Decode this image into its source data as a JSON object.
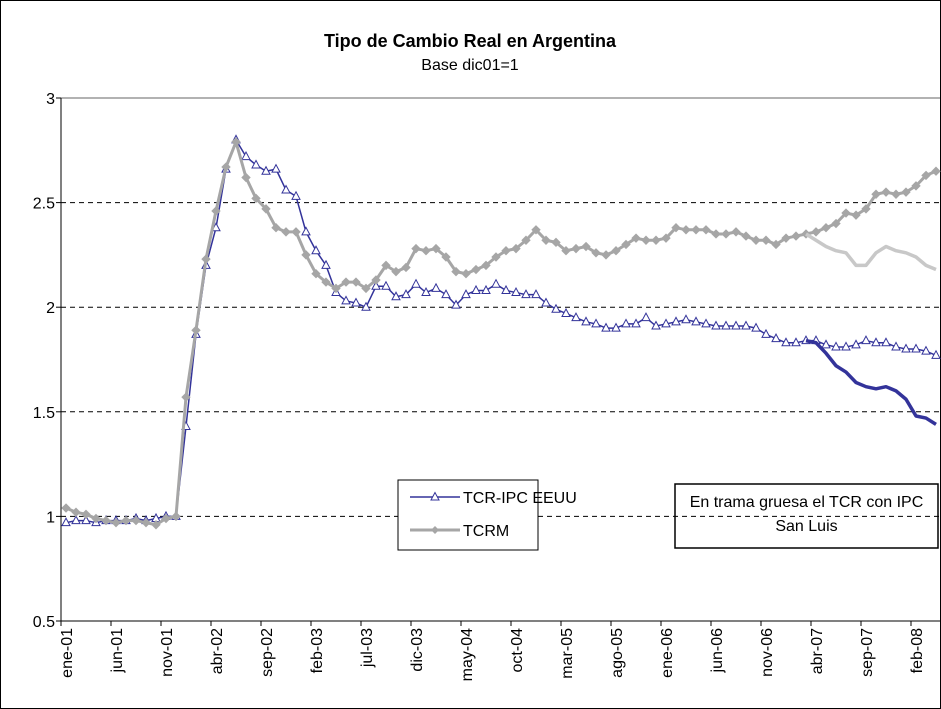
{
  "chart_data": {
    "type": "line",
    "title": "Tipo de Cambio Real en Argentina",
    "subtitle": "Base dic01=1",
    "annotation": "En trama gruesa el TCR con IPC San Luis",
    "categories": [
      "ene-01",
      null,
      null,
      null,
      null,
      "jun-01",
      null,
      null,
      null,
      null,
      "nov-01",
      null,
      null,
      null,
      null,
      "abr-02",
      null,
      null,
      null,
      null,
      "sep-02",
      null,
      null,
      null,
      null,
      "feb-03",
      null,
      null,
      null,
      null,
      "jul-03",
      null,
      null,
      null,
      null,
      "dic-03",
      null,
      null,
      null,
      null,
      "may-04",
      null,
      null,
      null,
      null,
      "oct-04",
      null,
      null,
      null,
      null,
      "mar-05",
      null,
      null,
      null,
      null,
      "ago-05",
      null,
      null,
      null,
      null,
      "ene-06",
      null,
      null,
      null,
      null,
      "jun-06",
      null,
      null,
      null,
      null,
      "nov-06",
      null,
      null,
      null,
      null,
      "abr-07",
      null,
      null,
      null,
      null,
      "sep-07",
      null,
      null,
      null,
      null,
      "feb-08",
      null,
      null
    ],
    "series": [
      {
        "name": "TCR-IPC EEUU",
        "color": "#33339a",
        "marker": "triangle",
        "values": [
          0.97,
          0.98,
          0.98,
          0.97,
          0.98,
          0.98,
          0.98,
          0.99,
          0.98,
          0.99,
          1.0,
          1.0,
          1.43,
          1.87,
          2.2,
          2.38,
          2.66,
          2.8,
          2.72,
          2.68,
          2.65,
          2.66,
          2.56,
          2.53,
          2.36,
          2.27,
          2.2,
          2.07,
          2.03,
          2.02,
          2.0,
          2.1,
          2.1,
          2.05,
          2.06,
          2.11,
          2.07,
          2.09,
          2.06,
          2.01,
          2.06,
          2.08,
          2.08,
          2.11,
          2.08,
          2.07,
          2.06,
          2.06,
          2.02,
          1.99,
          1.97,
          1.95,
          1.93,
          1.92,
          1.9,
          1.9,
          1.92,
          1.92,
          1.95,
          1.91,
          1.92,
          1.93,
          1.94,
          1.93,
          1.92,
          1.91,
          1.91,
          1.91,
          1.91,
          1.9,
          1.87,
          1.85,
          1.83,
          1.83,
          1.84,
          1.84,
          1.82,
          1.81,
          1.81,
          1.82,
          1.84,
          1.83,
          1.83,
          1.81,
          1.8,
          1.8,
          1.79,
          1.77
        ]
      },
      {
        "name": "TCRM",
        "color": "#a6a6a6",
        "marker": "diamond",
        "values": [
          1.04,
          1.02,
          1.01,
          0.99,
          0.98,
          0.97,
          0.98,
          0.98,
          0.97,
          0.96,
          0.99,
          1.0,
          1.57,
          1.89,
          2.23,
          2.46,
          2.67,
          2.79,
          2.62,
          2.52,
          2.47,
          2.38,
          2.36,
          2.36,
          2.25,
          2.16,
          2.12,
          2.09,
          2.12,
          2.12,
          2.09,
          2.13,
          2.2,
          2.17,
          2.19,
          2.28,
          2.27,
          2.28,
          2.24,
          2.17,
          2.16,
          2.18,
          2.2,
          2.24,
          2.27,
          2.28,
          2.32,
          2.37,
          2.32,
          2.31,
          2.27,
          2.28,
          2.29,
          2.26,
          2.25,
          2.27,
          2.3,
          2.33,
          2.32,
          2.32,
          2.33,
          2.38,
          2.37,
          2.37,
          2.37,
          2.35,
          2.35,
          2.36,
          2.34,
          2.32,
          2.32,
          2.3,
          2.33,
          2.34,
          2.35,
          2.36,
          2.38,
          2.4,
          2.45,
          2.44,
          2.47,
          2.54,
          2.55,
          2.54,
          2.55,
          2.58,
          2.63,
          2.65
        ]
      },
      {
        "color": "#33339a",
        "thick": true,
        "values": [
          null,
          null,
          null,
          null,
          null,
          null,
          null,
          null,
          null,
          null,
          null,
          null,
          null,
          null,
          null,
          null,
          null,
          null,
          null,
          null,
          null,
          null,
          null,
          null,
          null,
          null,
          null,
          null,
          null,
          null,
          null,
          null,
          null,
          null,
          null,
          null,
          null,
          null,
          null,
          null,
          null,
          null,
          null,
          null,
          null,
          null,
          null,
          null,
          null,
          null,
          null,
          null,
          null,
          null,
          null,
          null,
          null,
          null,
          null,
          null,
          null,
          null,
          null,
          null,
          null,
          null,
          null,
          null,
          null,
          null,
          null,
          null,
          null,
          null,
          1.84,
          1.83,
          1.78,
          1.72,
          1.69,
          1.64,
          1.62,
          1.61,
          1.62,
          1.6,
          1.56,
          1.48,
          1.47,
          1.44
        ]
      },
      {
        "color": "#c8c8c8",
        "thick": true,
        "values": [
          null,
          null,
          null,
          null,
          null,
          null,
          null,
          null,
          null,
          null,
          null,
          null,
          null,
          null,
          null,
          null,
          null,
          null,
          null,
          null,
          null,
          null,
          null,
          null,
          null,
          null,
          null,
          null,
          null,
          null,
          null,
          null,
          null,
          null,
          null,
          null,
          null,
          null,
          null,
          null,
          null,
          null,
          null,
          null,
          null,
          null,
          null,
          null,
          null,
          null,
          null,
          null,
          null,
          null,
          null,
          null,
          null,
          null,
          null,
          null,
          null,
          null,
          null,
          null,
          null,
          null,
          null,
          null,
          null,
          null,
          null,
          null,
          null,
          null,
          2.35,
          2.32,
          2.29,
          2.27,
          2.26,
          2.2,
          2.2,
          2.26,
          2.29,
          2.27,
          2.26,
          2.24,
          2.2,
          2.18
        ]
      }
    ],
    "ylim": [
      0.5,
      3
    ],
    "yticks": [
      0.5,
      1,
      1.5,
      2,
      2.5,
      3
    ],
    "grid": true
  }
}
